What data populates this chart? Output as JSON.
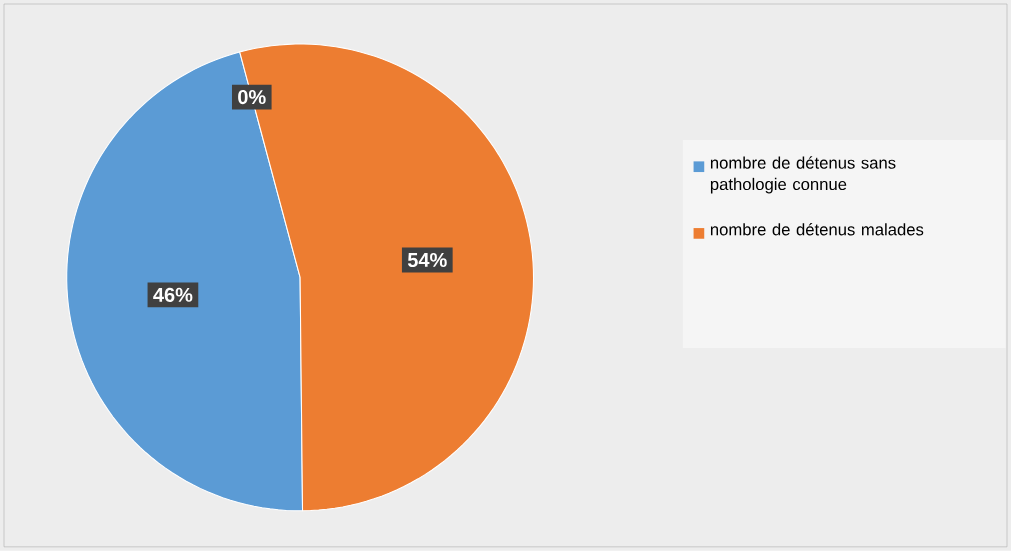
{
  "chart_data": {
    "type": "pie",
    "categories": [
      "nombre de détenus sans pathologie connue",
      "nombre de détenus malades",
      null
    ],
    "values": [
      46,
      54,
      0
    ],
    "colors": [
      "#5b9bd5",
      "#ed7d31",
      "#a5a5a5"
    ],
    "value_labels": [
      "46%",
      "54%",
      "0%"
    ],
    "legend": "right"
  }
}
